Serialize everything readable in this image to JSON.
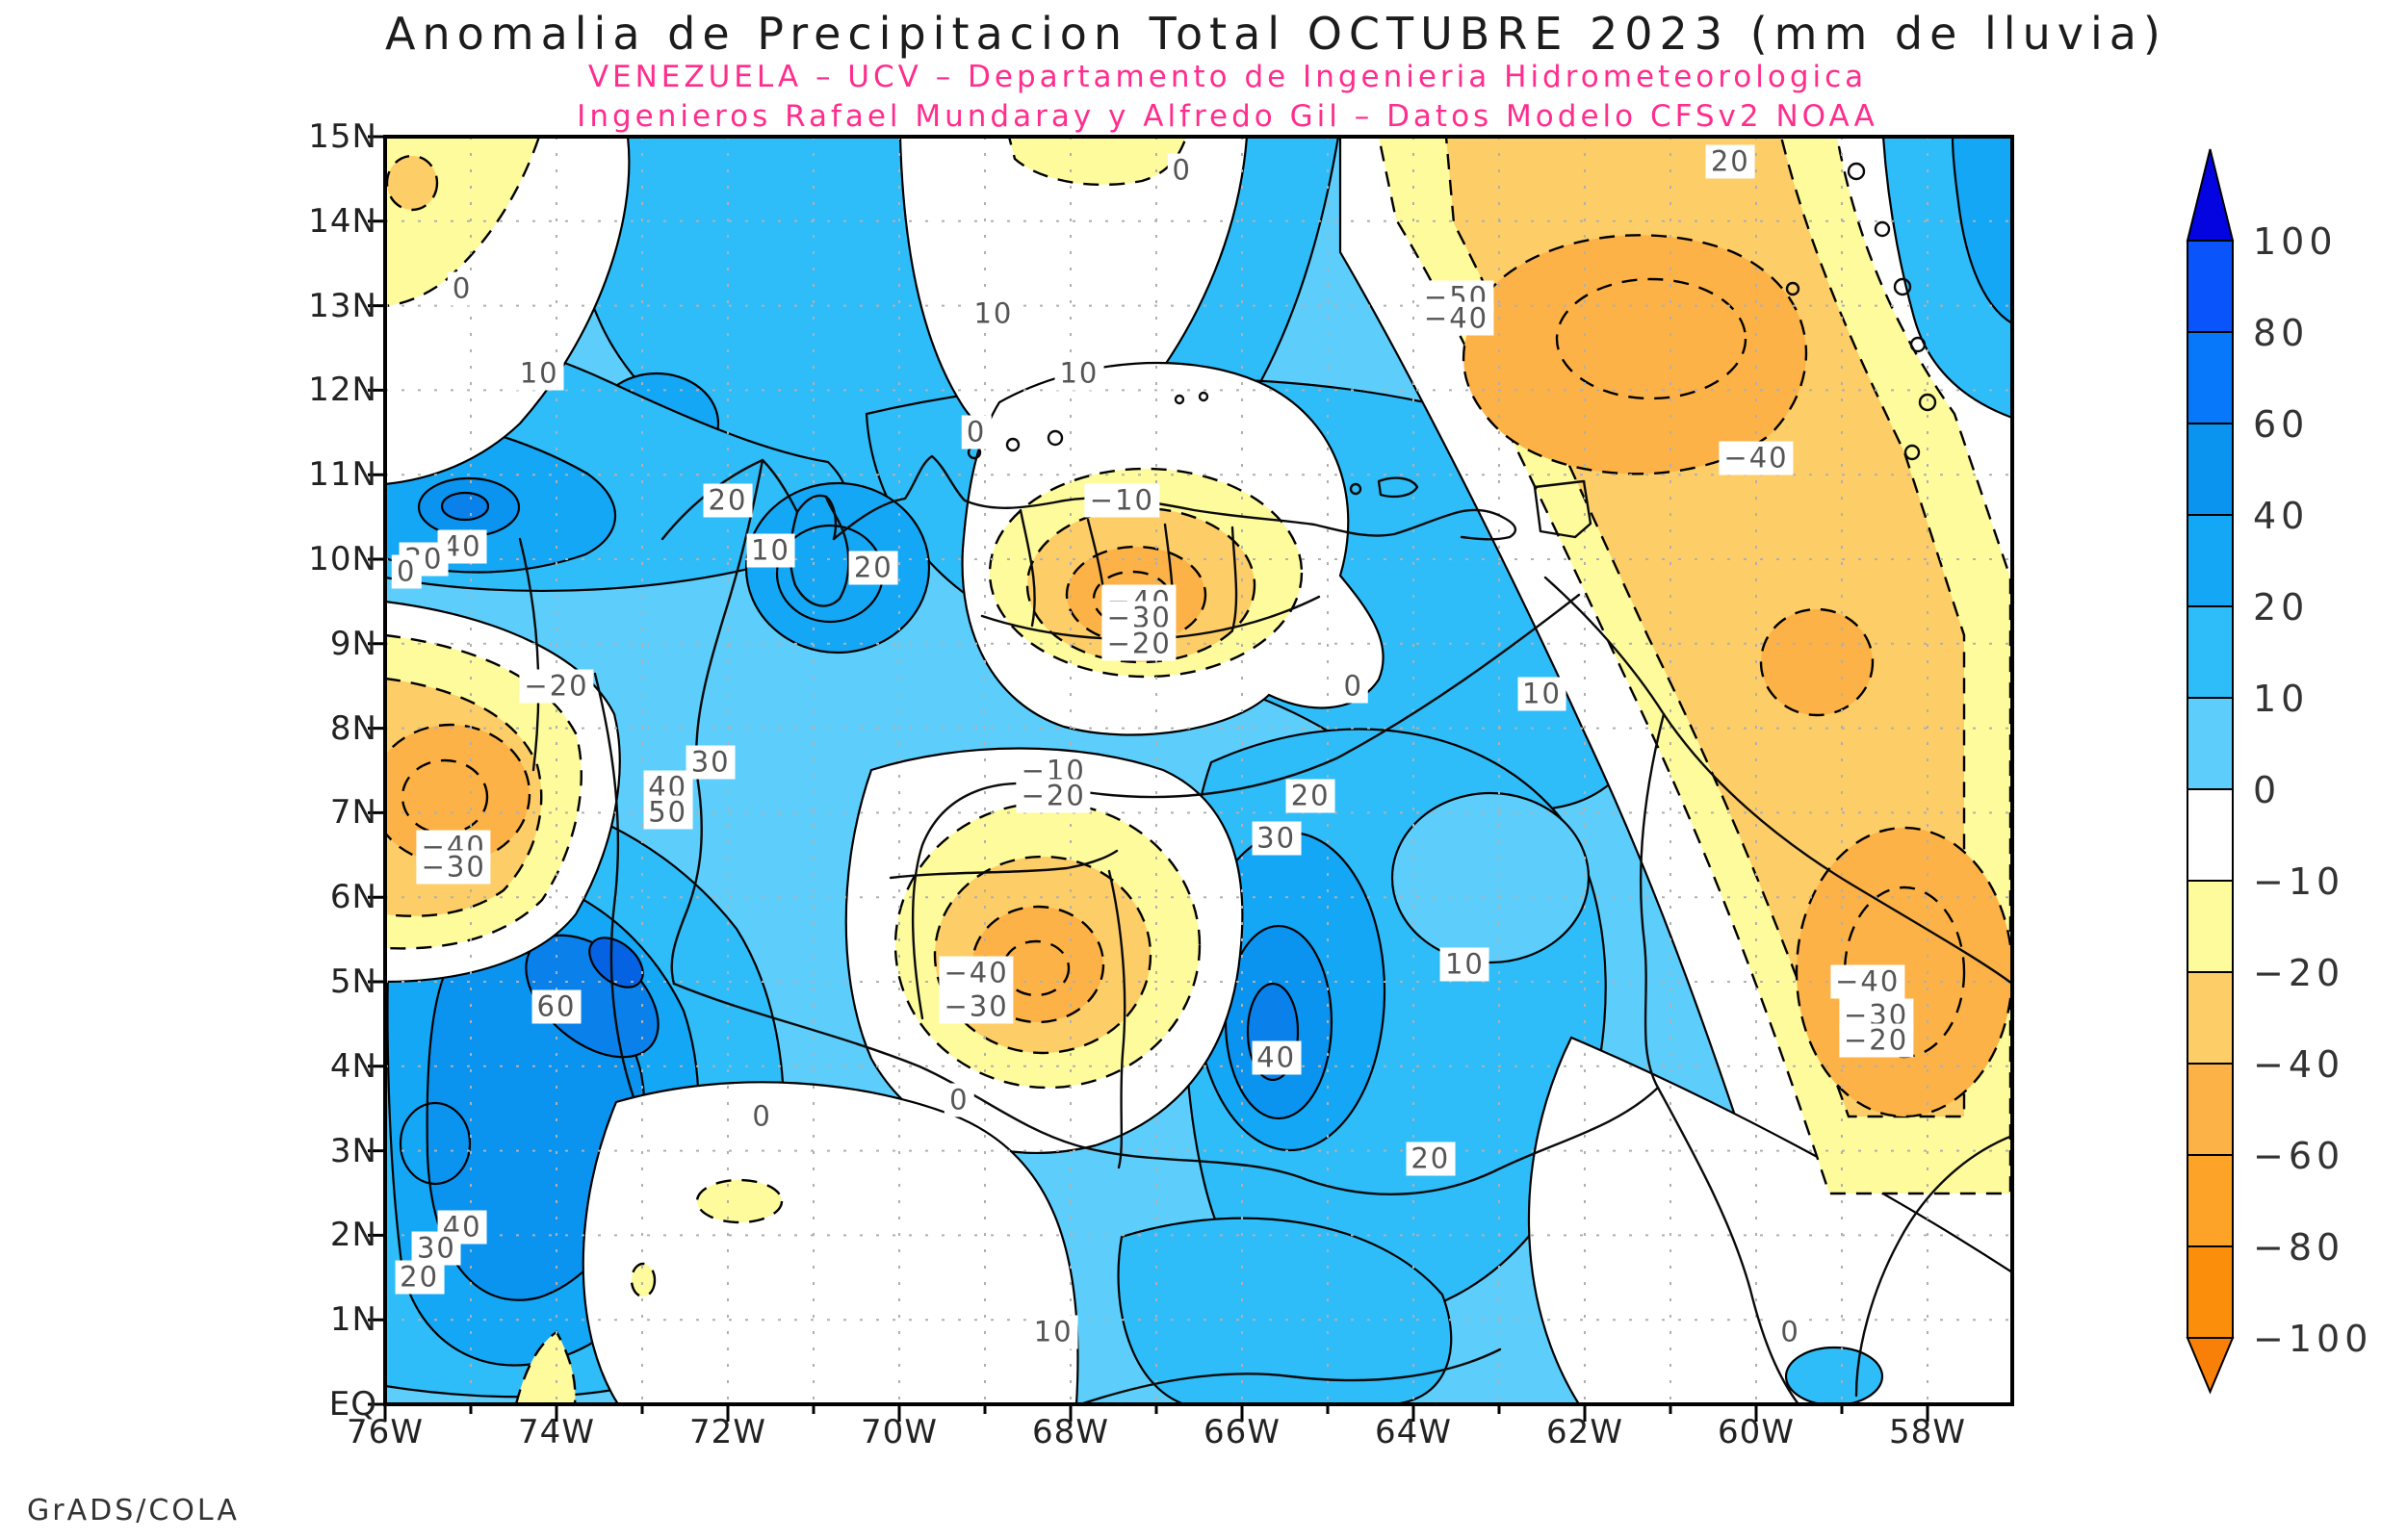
{
  "title": "Anomalia de Precipitacion Total OCTUBRE 2023 (mm de lluvia)",
  "subtitle1": "VENEZUELA – UCV – Departamento de Ingenieria Hidrometeorologica",
  "subtitle2": "Ingenieros Rafael Mundaray y Alfredo Gil – Datos Modelo CFSv2 NOAA",
  "credit": "GrADS/COLA",
  "colors": {
    "subtitle_magenta": "#ff2d8d",
    "title_text": "#1c1c1c",
    "contour_label_text": "#555555",
    "grid": "#b0b0b0",
    "frame": "#000000",
    "blue_over_100": "#0404e0",
    "blue_80_100": "#0a55fb",
    "blue_60_80": "#0878fa",
    "blue_40_60": "#0b93f0",
    "blue_20_40": "#14a7f6",
    "blue_10_20": "#2fbdf9",
    "blue_0_10": "#5dcefc",
    "white_neg10_0": "#ffffff",
    "yellow_neg20": "#fdfb9b",
    "sand_neg40": "#fdcd68",
    "orange_neg60": "#fcb247",
    "orange_neg80": "#fda428",
    "orange_neg100": "#fb8e0a",
    "orange_under_neg100": "#f98008"
  },
  "axes": {
    "x_ticks": [
      {
        "label": "76W",
        "lon": 76
      },
      {
        "label": "74W",
        "lon": 74
      },
      {
        "label": "72W",
        "lon": 72
      },
      {
        "label": "70W",
        "lon": 70
      },
      {
        "label": "68W",
        "lon": 68
      },
      {
        "label": "66W",
        "lon": 66
      },
      {
        "label": "64W",
        "lon": 64
      },
      {
        "label": "62W",
        "lon": 62
      },
      {
        "label": "60W",
        "lon": 60
      },
      {
        "label": "58W",
        "lon": 58
      }
    ],
    "y_ticks": [
      {
        "label": "EQ",
        "lat": 0
      },
      {
        "label": "1N",
        "lat": 1
      },
      {
        "label": "2N",
        "lat": 2
      },
      {
        "label": "3N",
        "lat": 3
      },
      {
        "label": "4N",
        "lat": 4
      },
      {
        "label": "5N",
        "lat": 5
      },
      {
        "label": "6N",
        "lat": 6
      },
      {
        "label": "7N",
        "lat": 7
      },
      {
        "label": "8N",
        "lat": 8
      },
      {
        "label": "9N",
        "lat": 9
      },
      {
        "label": "10N",
        "lat": 10
      },
      {
        "label": "11N",
        "lat": 11
      },
      {
        "label": "12N",
        "lat": 12
      },
      {
        "label": "13N",
        "lat": 13
      },
      {
        "label": "14N",
        "lat": 14
      },
      {
        "label": "15N",
        "lat": 15
      }
    ]
  },
  "colorbar": {
    "values": [
      "100",
      "80",
      "60",
      "40",
      "20",
      "10",
      "0",
      "−10",
      "−20",
      "−40",
      "−60",
      "−80",
      "−100"
    ],
    "segment_colors": [
      "#0404e0",
      "#0a55fb",
      "#0878fa",
      "#0b93f0",
      "#14a7f6",
      "#2fbdf9",
      "#5dcefc",
      "#ffffff",
      "#fdfb9b",
      "#fdcd68",
      "#fcb247",
      "#fda428",
      "#fb8e0a",
      "#f98008"
    ]
  },
  "chart_data": {
    "type": "contour",
    "title": "Anomalia de Precipitacion Total OCTUBRE 2023 (mm de lluvia)",
    "variable": "Precipitation anomaly",
    "units": "mm de lluvia",
    "period": "OCTUBRE 2023",
    "model": "CFSv2 NOAA",
    "organization": "VENEZUELA - UCV - Departamento de Ingenieria Hidrometeorologica",
    "authors": "Ingenieros Rafael Mundaray y Alfredo Gil",
    "renderer": "GrADS/COLA",
    "lon_range_deg_west": [
      76,
      57
    ],
    "lat_range_deg_north": [
      0,
      15
    ],
    "grid_spacing_deg": 1,
    "contour_interval": 10,
    "contour_style": {
      "positive": "solid",
      "negative": "dashed",
      "zero": "solid"
    },
    "colorbar_levels": [
      100,
      80,
      60,
      40,
      20,
      10,
      0,
      -10,
      -20,
      -40,
      -60,
      -80,
      -100
    ],
    "labeled_contours": [
      {
        "label": "0",
        "lon": 66.7,
        "lat": 14.6
      },
      {
        "label": "20",
        "lon": 60.3,
        "lat": 14.7
      },
      {
        "label": "−50",
        "lon": 63.5,
        "lat": 13.1
      },
      {
        "label": "−40",
        "lon": 63.5,
        "lat": 12.85
      },
      {
        "label": "0",
        "lon": 75.1,
        "lat": 13.2
      },
      {
        "label": "10",
        "lon": 74.2,
        "lat": 12.2
      },
      {
        "label": "10",
        "lon": 68.9,
        "lat": 12.9
      },
      {
        "label": "10",
        "lon": 67.9,
        "lat": 12.2
      },
      {
        "label": "−40",
        "lon": 60.0,
        "lat": 11.2
      },
      {
        "label": "0",
        "lon": 69.1,
        "lat": 11.5
      },
      {
        "label": "20",
        "lon": 72.0,
        "lat": 10.7
      },
      {
        "label": "40",
        "lon": 75.1,
        "lat": 10.15
      },
      {
        "label": "30",
        "lon": 75.55,
        "lat": 10.0
      },
      {
        "label": "0",
        "lon": 75.75,
        "lat": 9.85
      },
      {
        "label": "10",
        "lon": 71.5,
        "lat": 10.1
      },
      {
        "label": "20",
        "lon": 70.3,
        "lat": 9.9
      },
      {
        "label": "−10",
        "lon": 67.4,
        "lat": 10.7
      },
      {
        "label": "−40",
        "lon": 67.2,
        "lat": 9.5
      },
      {
        "label": "−30",
        "lon": 67.2,
        "lat": 9.3
      },
      {
        "label": "−20",
        "lon": 67.2,
        "lat": 9.0
      },
      {
        "label": "0",
        "lon": 64.7,
        "lat": 8.5
      },
      {
        "label": "10",
        "lon": 62.5,
        "lat": 8.4
      },
      {
        "label": "−20",
        "lon": 74.0,
        "lat": 8.5
      },
      {
        "label": "30",
        "lon": 72.2,
        "lat": 7.6
      },
      {
        "label": "−10",
        "lon": 68.2,
        "lat": 7.5
      },
      {
        "label": "−20",
        "lon": 68.2,
        "lat": 7.2
      },
      {
        "label": "20",
        "lon": 65.2,
        "lat": 7.2
      },
      {
        "label": "30",
        "lon": 65.6,
        "lat": 6.7
      },
      {
        "label": "40",
        "lon": 72.7,
        "lat": 7.3
      },
      {
        "label": "50",
        "lon": 72.7,
        "lat": 7.0
      },
      {
        "label": "−40",
        "lon": 75.2,
        "lat": 6.6
      },
      {
        "label": "−30",
        "lon": 75.2,
        "lat": 6.35
      },
      {
        "label": "10",
        "lon": 63.4,
        "lat": 5.2
      },
      {
        "label": "−40",
        "lon": 69.1,
        "lat": 5.1
      },
      {
        "label": "−30",
        "lon": 69.1,
        "lat": 4.7
      },
      {
        "label": "60",
        "lon": 74.0,
        "lat": 4.7
      },
      {
        "label": "40",
        "lon": 65.6,
        "lat": 4.1
      },
      {
        "label": "−40",
        "lon": 58.7,
        "lat": 5.0
      },
      {
        "label": "−30",
        "lon": 58.6,
        "lat": 4.6
      },
      {
        "label": "−20",
        "lon": 58.6,
        "lat": 4.3
      },
      {
        "label": "0",
        "lon": 69.3,
        "lat": 3.6
      },
      {
        "label": "0",
        "lon": 71.6,
        "lat": 3.4
      },
      {
        "label": "20",
        "lon": 63.8,
        "lat": 2.9
      },
      {
        "label": "40",
        "lon": 75.1,
        "lat": 2.1
      },
      {
        "label": "30",
        "lon": 75.4,
        "lat": 1.85
      },
      {
        "label": "20",
        "lon": 75.6,
        "lat": 1.5
      },
      {
        "label": "10",
        "lon": 68.2,
        "lat": 0.85
      },
      {
        "label": "0",
        "lon": 59.6,
        "lat": 0.85
      }
    ]
  }
}
